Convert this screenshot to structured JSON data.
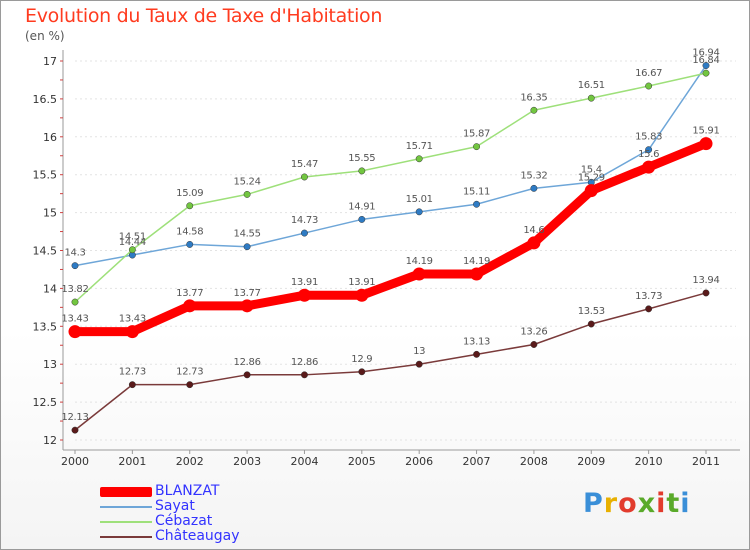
{
  "header": {
    "title": "Evolution du Taux de Taxe d'Habitation",
    "unit": "(en %)"
  },
  "logo": {
    "text": "Proxiti"
  },
  "chart_data": {
    "type": "line",
    "title": "Evolution du Taux de Taxe d'Habitation",
    "ylabel": "(en %)",
    "xlabel": "",
    "x": [
      2000,
      2001,
      2002,
      2003,
      2004,
      2005,
      2006,
      2007,
      2008,
      2009,
      2010,
      2011
    ],
    "ylim": [
      12,
      17
    ],
    "yticks": [
      12,
      12.5,
      13,
      13.5,
      14,
      14.5,
      15,
      15.5,
      16,
      16.5,
      17
    ],
    "legend_position": "bottom-left",
    "series": [
      {
        "name": "BLANZAT",
        "color": "#ff0000",
        "marker_color": "#ff0000",
        "thick": true,
        "values": [
          13.43,
          13.43,
          13.77,
          13.77,
          13.91,
          13.91,
          14.19,
          14.19,
          14.6,
          15.29,
          15.6,
          15.91
        ],
        "labels": [
          "13.43",
          "13.43",
          "13.77",
          "13.77",
          "13.91",
          "13.91",
          "14.19",
          "14.19",
          "14.6",
          "15.29",
          "15.6",
          "15.91"
        ]
      },
      {
        "name": "Sayat",
        "color": "#6ea6d8",
        "marker_color": "#2e7bc4",
        "thick": false,
        "values": [
          14.3,
          14.44,
          14.58,
          14.55,
          14.73,
          14.91,
          15.01,
          15.11,
          15.32,
          15.4,
          15.83,
          16.94
        ],
        "labels": [
          "14.3",
          "14.44",
          "14.58",
          "14.55",
          "14.73",
          "14.91",
          "15.01",
          "15.11",
          "15.32",
          "15.4",
          "15.83",
          "16.94"
        ]
      },
      {
        "name": "Cébazat",
        "color": "#9ee07a",
        "marker_color": "#72c640",
        "thick": false,
        "values": [
          13.82,
          14.51,
          15.09,
          15.24,
          15.47,
          15.55,
          15.71,
          15.87,
          16.35,
          16.51,
          16.67,
          16.84
        ],
        "labels": [
          "13.82",
          "14.51",
          "15.09",
          "15.24",
          "15.47",
          "15.55",
          "15.71",
          "15.87",
          "16.35",
          "16.51",
          "16.67",
          "16.84"
        ]
      },
      {
        "name": "Châteaugay",
        "color": "#7a3a3a",
        "marker_color": "#5a1a1a",
        "thick": false,
        "values": [
          12.13,
          12.73,
          12.73,
          12.86,
          12.86,
          12.9,
          13,
          13.13,
          13.26,
          13.53,
          13.73,
          13.94
        ],
        "labels": [
          "12.13",
          "12.73",
          "12.73",
          "12.86",
          "12.86",
          "12.9",
          "13",
          "13.13",
          "13.26",
          "13.53",
          "13.73",
          "13.94"
        ]
      }
    ]
  }
}
